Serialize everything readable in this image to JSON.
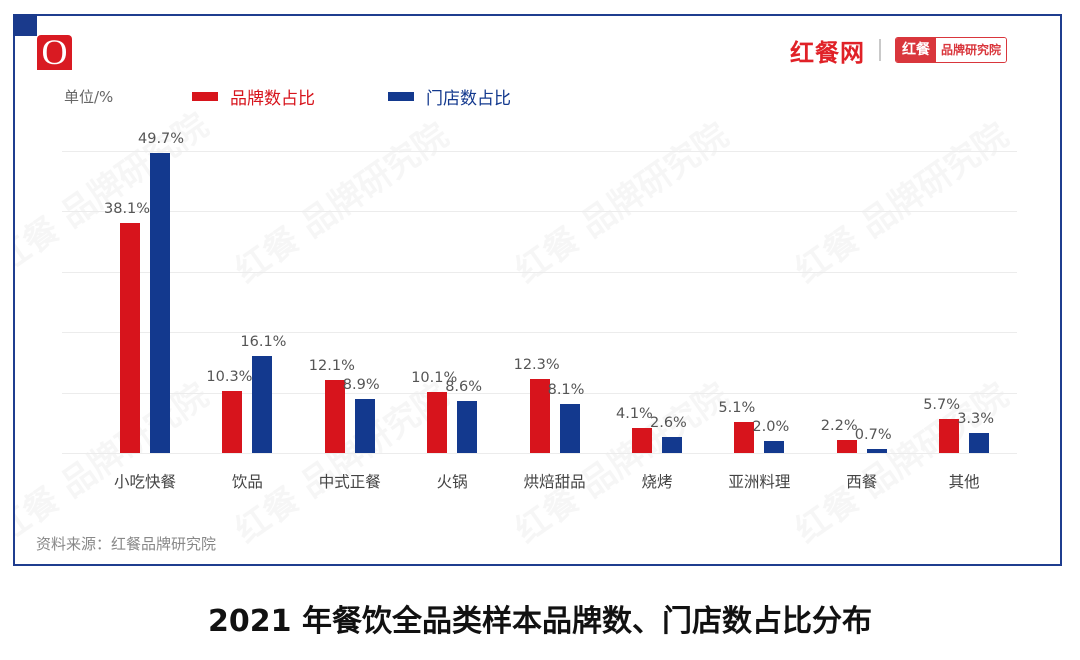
{
  "header": {
    "logo_letter": "O",
    "brand_main": "红餐网",
    "brand_box_red": "红餐",
    "brand_box_white": "品牌研究院"
  },
  "chart": {
    "unit_label": "单位/%",
    "source": "资料来源：红餐品牌研究院",
    "title": "2021 年餐饮全品类样本品牌数、门店数占比分布",
    "watermark_text": "红餐 品牌研究院",
    "colors": {
      "brand": "#d7141c",
      "store": "#13398e",
      "frame": "#1f3d8f"
    }
  },
  "chart_data": {
    "type": "bar",
    "title": "2021 年餐饮全品类样本品牌数、门店数占比分布",
    "xlabel": "",
    "ylabel": "单位/%",
    "ylim": [
      0,
      50
    ],
    "grid": true,
    "legend_position": "top",
    "categories": [
      "小吃快餐",
      "饮品",
      "中式正餐",
      "火锅",
      "烘焙甜品",
      "烧烤",
      "亚洲料理",
      "西餐",
      "其他"
    ],
    "series": [
      {
        "name": "品牌数占比",
        "color": "#d7141c",
        "values": [
          38.1,
          10.3,
          12.1,
          10.1,
          12.3,
          4.1,
          5.1,
          2.2,
          5.7
        ],
        "labels": [
          "38.1%",
          "10.3%",
          "12.1%",
          "10.1%",
          "12.3%",
          "4.1%",
          "5.1%",
          "2.2%",
          "5.7%"
        ]
      },
      {
        "name": "门店数占比",
        "color": "#13398e",
        "values": [
          49.7,
          16.1,
          8.9,
          8.6,
          8.1,
          2.6,
          2.0,
          0.7,
          3.3
        ],
        "labels": [
          "49.7%",
          "16.1%",
          "8.9%",
          "8.6%",
          "8.1%",
          "2.6%",
          "2.0%",
          "0.7%",
          "3.3%"
        ]
      }
    ],
    "source": "资料来源：红餐品牌研究院"
  }
}
